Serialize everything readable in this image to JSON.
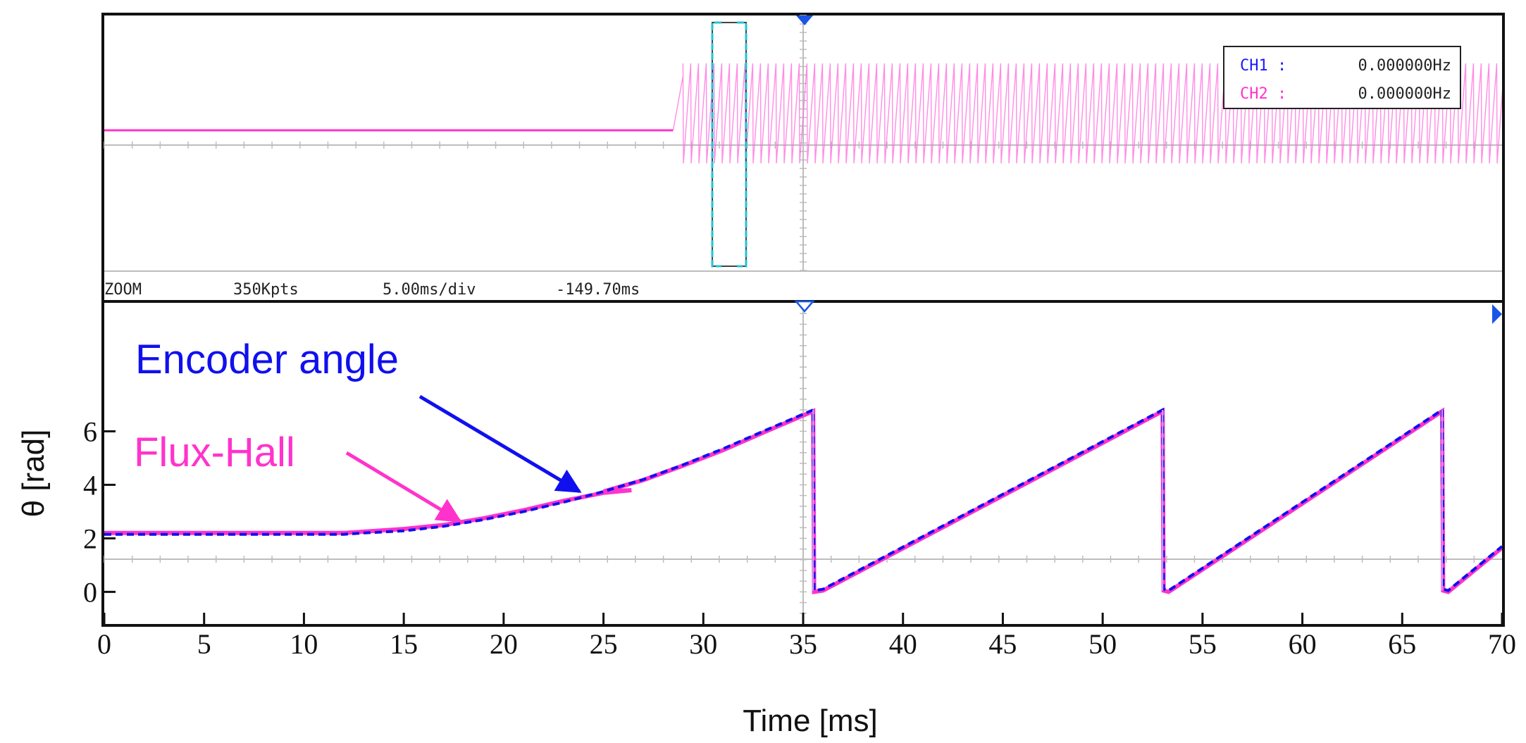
{
  "scope_status": {
    "mode": "ZOOM",
    "points": "350Kpts",
    "timebase": "5.00ms/div",
    "offset": "-149.70ms"
  },
  "frequency_legend": [
    {
      "label": "CH1 :",
      "value": "0.000000Hz",
      "color": "#1a1aff"
    },
    {
      "label": "CH2 :",
      "value": "0.000000Hz",
      "color": "#ff33cc"
    }
  ],
  "colors": {
    "encoder": "#1010ee",
    "flux_hall": "#ff33cc",
    "overview_trace": "#ff66dd",
    "grid": "#bdbdbd",
    "frame": "#111111",
    "zoom_bracket": "#22c3d6"
  },
  "chart_data": {
    "type": "line",
    "title": "",
    "xlabel": "Time [ms]",
    "ylabel": "θ [rad]",
    "xlim": [
      0,
      70
    ],
    "ylim": [
      -1.2,
      10.8
    ],
    "x_ticks": [
      0,
      5,
      10,
      15,
      20,
      25,
      30,
      35,
      40,
      45,
      50,
      55,
      60,
      65,
      70
    ],
    "x_tick_labels": [
      "0",
      "5",
      "10",
      "15",
      "20",
      "25",
      "30",
      "35",
      "40",
      "45",
      "50",
      "55",
      "60",
      "65",
      "70"
    ],
    "y_ticks": [
      0,
      2,
      4,
      6
    ],
    "y_tick_labels": [
      "0",
      "2",
      "4",
      "6"
    ],
    "series": [
      {
        "name": "Encoder angle",
        "x": [
          0,
          12,
          13,
          15,
          17,
          19,
          21,
          23,
          25,
          27,
          29,
          31,
          33,
          35.5,
          35.55,
          36,
          53,
          53.05,
          53.3,
          67,
          67.05,
          67.3,
          70
        ],
        "y": [
          2.15,
          2.15,
          2.2,
          2.28,
          2.45,
          2.7,
          3.0,
          3.35,
          3.75,
          4.2,
          4.75,
          5.35,
          6.0,
          6.8,
          0.05,
          0.1,
          6.8,
          0.1,
          0.05,
          6.8,
          0.1,
          0.05,
          1.7
        ]
      },
      {
        "name": "Flux-Hall",
        "x": [
          0,
          12,
          13,
          15,
          17,
          19,
          21,
          23,
          25,
          26.4,
          25,
          27,
          29,
          31,
          33,
          35.5,
          35.55,
          36,
          53,
          53.05,
          53.3,
          67,
          67.05,
          67.3,
          70
        ],
        "y": [
          2.2,
          2.2,
          2.25,
          2.35,
          2.5,
          2.75,
          3.05,
          3.4,
          3.7,
          3.8,
          3.75,
          4.18,
          4.72,
          5.3,
          5.95,
          6.75,
          0.0,
          0.05,
          6.75,
          0.05,
          0.0,
          6.75,
          0.05,
          0.0,
          1.65
        ]
      }
    ],
    "annotations": [
      {
        "text": "Encoder angle",
        "color": "#1010ee",
        "points_to": {
          "x": 23.8,
          "y": 3.75
        }
      },
      {
        "text": "Flux-Hall",
        "color": "#ff33cc",
        "points_to": {
          "x": 17.8,
          "y": 2.65
        }
      }
    ],
    "overview": {
      "channel_level": "flat then sawtooth",
      "start_ms_fraction": 0.41
    }
  }
}
